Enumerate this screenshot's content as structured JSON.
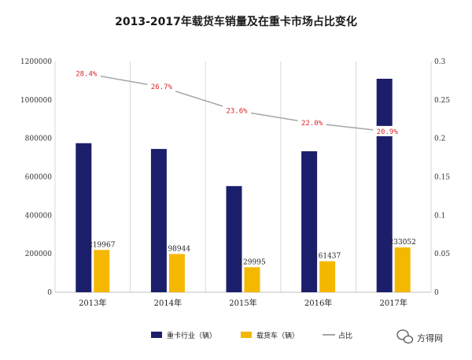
{
  "chart_data": {
    "type": "bar",
    "title": "2013-2017年载货车销量及在重卡市场占比变化",
    "categories": [
      "2013年",
      "2014年",
      "2015年",
      "2016年",
      "2017年"
    ],
    "series": [
      {
        "name": "重卡行业（辆）",
        "type": "bar",
        "axis": "left",
        "color": "#1b1f6b",
        "values": [
          775000,
          745000,
          552000,
          733000,
          1110000
        ]
      },
      {
        "name": "载货车（辆）",
        "type": "bar",
        "axis": "left",
        "color": "#f5b800",
        "values": [
          219967,
          198944,
          129995,
          161437,
          233052
        ],
        "value_labels": [
          "219967",
          "198944",
          "129995",
          "161437",
          "233052"
        ]
      },
      {
        "name": "占比",
        "type": "line",
        "axis": "right",
        "color": "#a6a6a6",
        "values": [
          0.284,
          0.267,
          0.236,
          0.22,
          0.209
        ],
        "value_labels": [
          "28.4%",
          "26.7%",
          "23.6%",
          "22.0%",
          "20.9%"
        ]
      }
    ],
    "ylim_left": [
      0,
      1200000
    ],
    "yticks_left": [
      "0",
      "200000",
      "400000",
      "600000",
      "800000",
      "1000000",
      "1200000"
    ],
    "ylim_right": [
      0,
      0.3
    ],
    "yticks_right": [
      "0",
      "0.05",
      "0.1",
      "0.15",
      "0.2",
      "0.25",
      "0.3"
    ],
    "grid": "vertical",
    "legend_position": "bottom"
  },
  "watermark": {
    "text": "方得网",
    "icon": "wechat-icon"
  }
}
